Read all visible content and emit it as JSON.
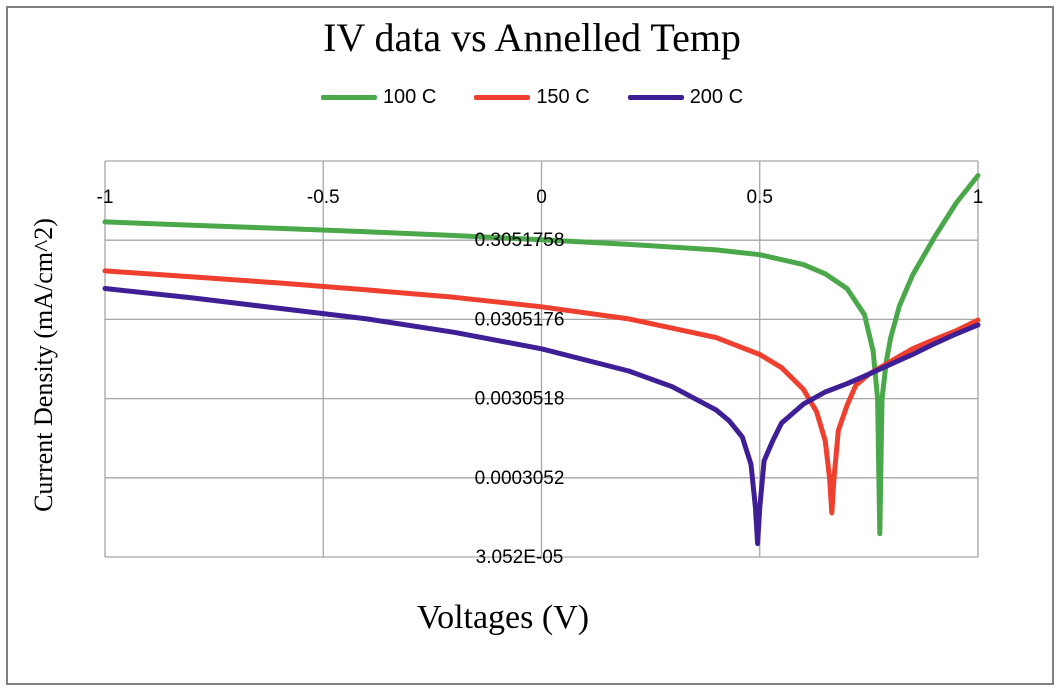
{
  "chart_data": {
    "type": "line",
    "title": "IV data vs Annelled Temp",
    "xlabel": "Voltages (V)",
    "ylabel": "Current Density (mA/cm^2)",
    "xlim": [
      -1,
      1
    ],
    "y_scale": "log",
    "ylim": [
      3.052e-05,
      3.051758
    ],
    "x_ticks": [
      "-1",
      "-0.5",
      "0",
      "0.5",
      "1"
    ],
    "y_ticks": [
      "0.3051758",
      "0.0305176",
      "0.0030518",
      "0.0003052",
      "3.052E-05"
    ],
    "grid": true,
    "legend_position": "top",
    "series": [
      {
        "name": "100 C",
        "color": "#4aa84a",
        "x": [
          -1,
          -0.8,
          -0.6,
          -0.4,
          -0.2,
          0,
          0.2,
          0.4,
          0.5,
          0.6,
          0.65,
          0.7,
          0.74,
          0.76,
          0.77,
          0.775,
          0.78,
          0.79,
          0.8,
          0.82,
          0.85,
          0.9,
          0.95,
          1.0
        ],
        "y": [
          0.52,
          0.47,
          0.43,
          0.39,
          0.35,
          0.31,
          0.27,
          0.23,
          0.2,
          0.15,
          0.115,
          0.075,
          0.035,
          0.012,
          0.003,
          6e-05,
          0.003,
          0.009,
          0.018,
          0.045,
          0.11,
          0.33,
          0.9,
          2.0
        ]
      },
      {
        "name": "150 C",
        "color": "#ef3f2f",
        "x": [
          -1,
          -0.8,
          -0.6,
          -0.4,
          -0.2,
          0,
          0.2,
          0.4,
          0.5,
          0.55,
          0.6,
          0.63,
          0.65,
          0.66,
          0.665,
          0.67,
          0.68,
          0.7,
          0.72,
          0.75,
          0.8,
          0.85,
          0.9,
          0.95,
          1.0
        ],
        "y": [
          0.125,
          0.105,
          0.088,
          0.072,
          0.058,
          0.044,
          0.031,
          0.018,
          0.011,
          0.0075,
          0.004,
          0.0021,
          0.0009,
          0.0003,
          0.00011,
          0.0003,
          0.0012,
          0.0025,
          0.0045,
          0.0062,
          0.009,
          0.013,
          0.017,
          0.022,
          0.03
        ]
      },
      {
        "name": "200 C",
        "color": "#3f1f96",
        "x": [
          -1,
          -0.8,
          -0.6,
          -0.4,
          -0.2,
          0,
          0.2,
          0.3,
          0.4,
          0.43,
          0.46,
          0.48,
          0.49,
          0.495,
          0.5,
          0.51,
          0.53,
          0.55,
          0.6,
          0.65,
          0.7,
          0.75,
          0.8,
          0.85,
          0.9,
          0.95,
          1.0
        ],
        "y": [
          0.075,
          0.057,
          0.042,
          0.031,
          0.021,
          0.013,
          0.0068,
          0.0043,
          0.0022,
          0.0016,
          0.001,
          0.00045,
          0.00013,
          4.5e-05,
          0.00013,
          0.0005,
          0.0009,
          0.0015,
          0.0026,
          0.0037,
          0.0047,
          0.0062,
          0.0083,
          0.011,
          0.015,
          0.02,
          0.026
        ]
      }
    ]
  }
}
